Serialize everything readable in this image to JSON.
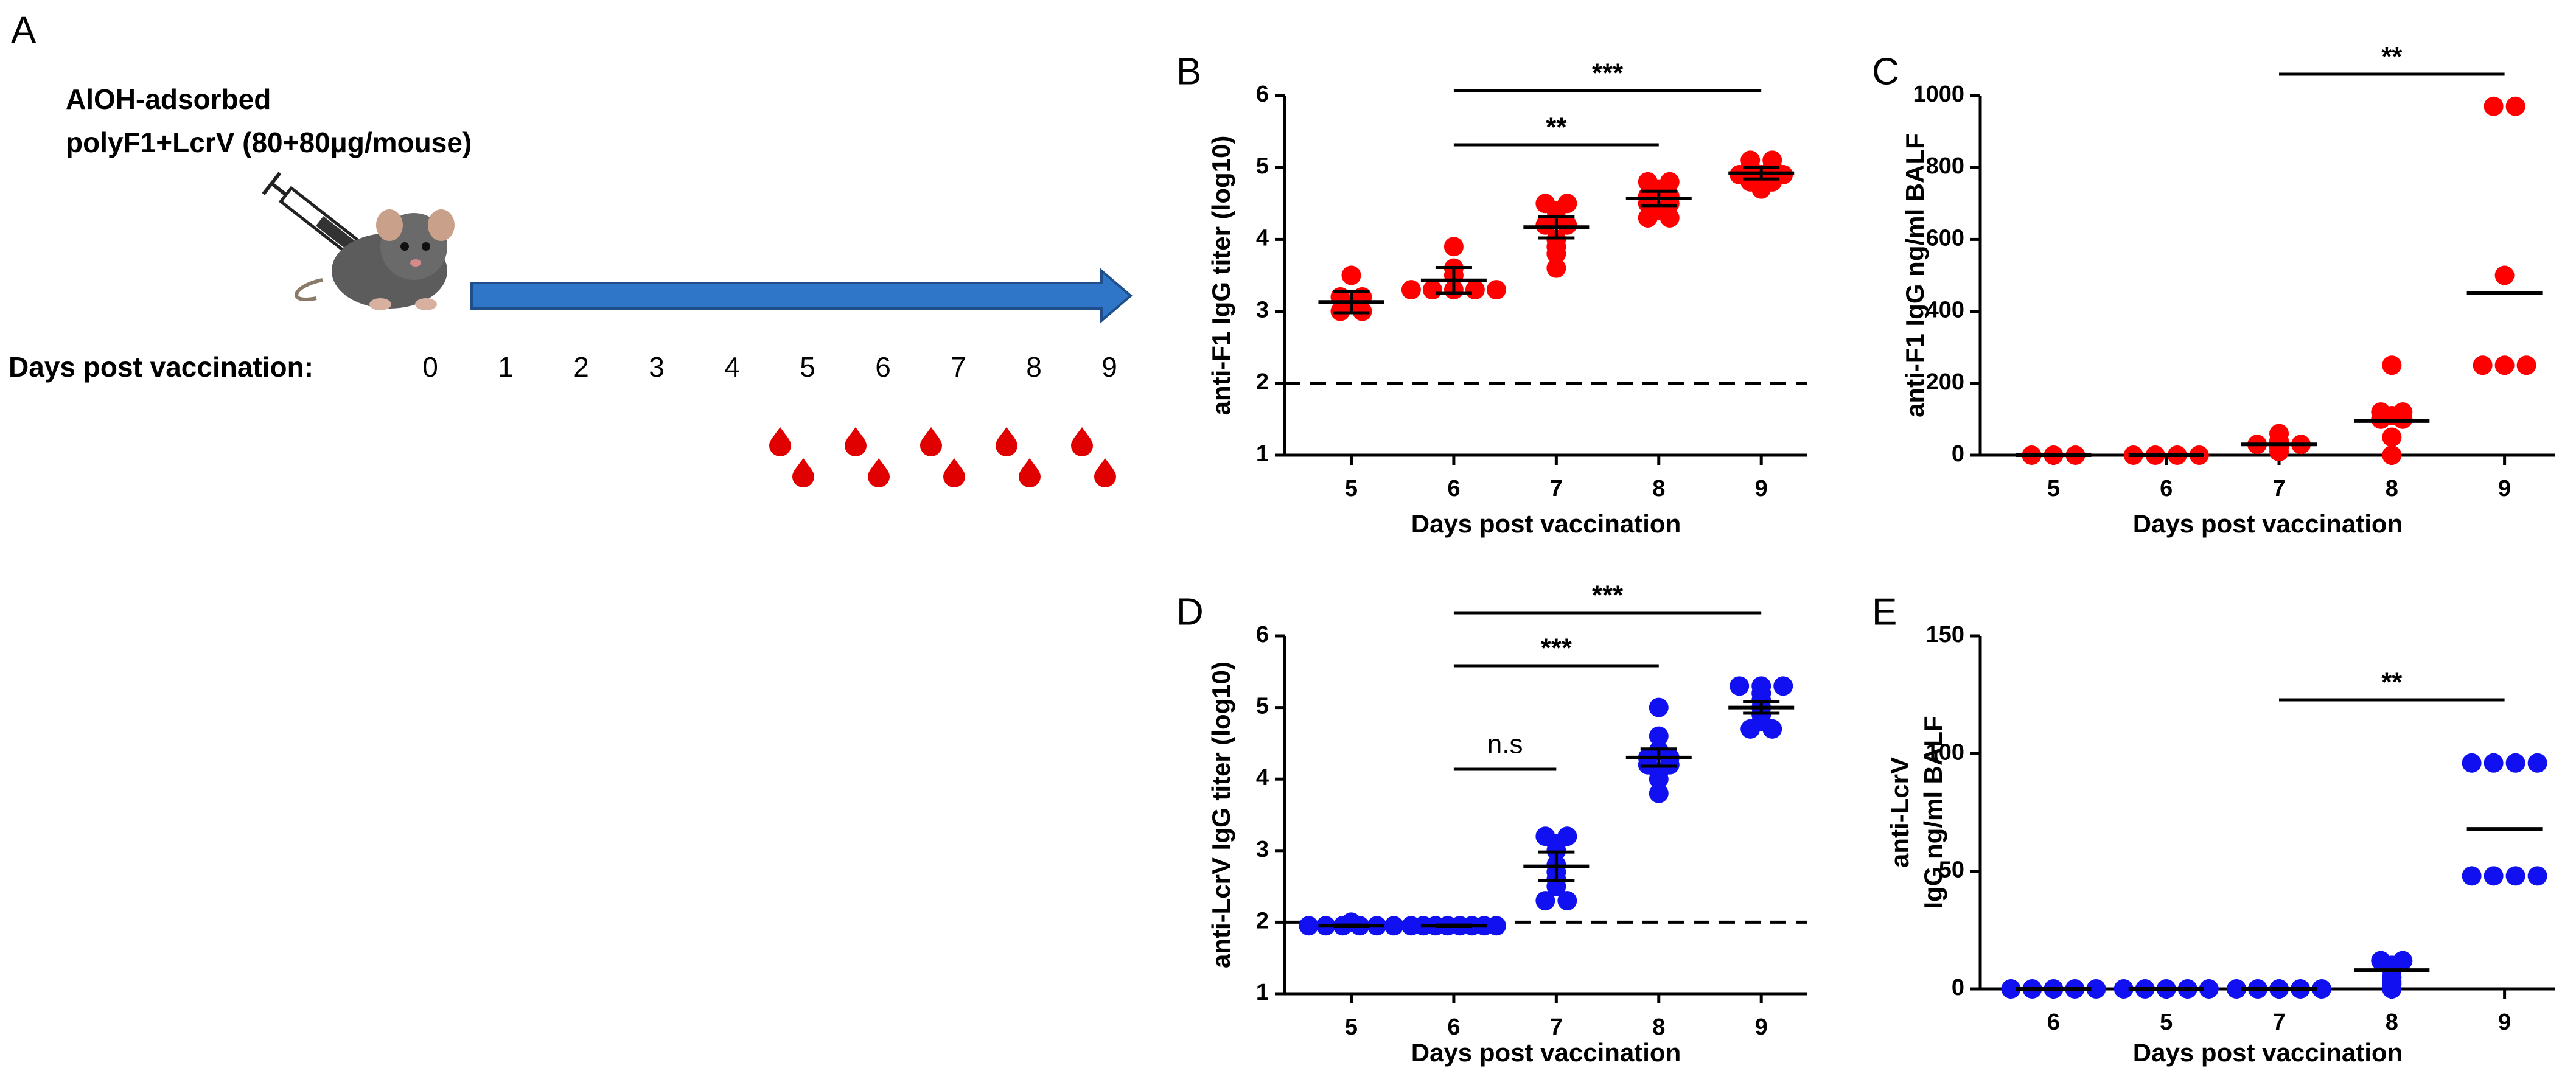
{
  "panel_a": {
    "letter": "A",
    "title_lines": [
      "AlOH-adsorbed",
      "polyF1+LcrV (80+80μg/mouse)"
    ],
    "days_label": "Days post vaccination:",
    "days": [
      0,
      1,
      2,
      3,
      4,
      5,
      6,
      7,
      8,
      9
    ]
  },
  "chart_data": [
    {
      "type": "dotplot",
      "panel": "B",
      "color": "#ff0000",
      "x_label": "Days post vaccination",
      "y_label": "anti-F1 IgG titer (log10)",
      "categories": [
        "5",
        "6",
        "7",
        "8",
        "9"
      ],
      "values": [
        [
          3.5,
          3.2,
          3.1,
          3.0,
          3.0,
          3.2
        ],
        [
          3.9,
          3.6,
          3.5,
          3.3,
          3.3,
          3.3,
          3.3,
          3.3
        ],
        [
          4.5,
          4.5,
          4.4,
          4.3,
          4.2,
          4.0,
          3.9,
          3.8,
          3.6,
          4.2
        ],
        [
          4.8,
          4.8,
          4.7,
          4.6,
          4.6,
          4.5,
          4.4,
          4.3,
          4.3,
          4.5
        ],
        [
          5.1,
          5.1,
          5.0,
          5.0,
          4.9,
          4.9,
          4.9,
          4.8,
          4.8,
          4.7
        ]
      ],
      "means": [
        3.13,
        3.43,
        4.17,
        4.57,
        4.92
      ],
      "errors": [
        0.15,
        0.18,
        0.15,
        0.1,
        0.08
      ],
      "ylim": [
        1,
        6
      ],
      "yticks": [
        1,
        2,
        3,
        4,
        5,
        6
      ],
      "reference_line": 2,
      "brackets": [
        {
          "from": "6",
          "to": "8",
          "label": "**"
        },
        {
          "from": "6",
          "to": "9",
          "label": "***"
        }
      ]
    },
    {
      "type": "dotplot",
      "panel": "C",
      "color": "#ff0000",
      "x_label": "Days post vaccination",
      "y_label": "anti-F1 IgG ng/ml BALF",
      "categories": [
        "5",
        "6",
        "7",
        "8",
        "9"
      ],
      "values": [
        [
          0,
          0,
          0
        ],
        [
          0,
          0,
          0,
          0
        ],
        [
          10,
          20,
          25,
          30,
          30,
          30,
          35,
          40,
          60
        ],
        [
          250,
          120,
          120,
          110,
          100,
          100,
          50,
          0
        ],
        [
          970,
          970,
          500,
          250,
          250,
          250
        ]
      ],
      "means": [
        0,
        0,
        30,
        95,
        450
      ],
      "ylim": [
        0,
        1000
      ],
      "yticks": [
        0,
        200,
        400,
        600,
        800,
        1000
      ],
      "brackets": [
        {
          "from": "7",
          "to": "9",
          "label": "**"
        }
      ]
    },
    {
      "type": "dotplot",
      "panel": "D",
      "color": "#1010f0",
      "x_label": "Days post vaccination",
      "y_label": "anti-LcrV IgG titer (log10)",
      "categories": [
        "5",
        "6",
        "7",
        "8",
        "9"
      ],
      "values": [
        [
          2.0,
          1.95,
          1.95,
          1.95,
          1.95,
          1.95,
          1.95
        ],
        [
          1.95,
          1.95,
          1.95,
          1.95,
          1.95,
          1.95,
          1.95,
          1.95
        ],
        [
          3.2,
          3.2,
          3.1,
          3.0,
          2.8,
          2.7,
          2.6,
          2.5,
          2.3,
          2.3
        ],
        [
          5.0,
          4.6,
          4.4,
          4.3,
          4.3,
          4.2,
          4.2,
          4.1,
          4.0,
          3.8
        ],
        [
          5.3,
          5.3,
          5.3,
          5.2,
          5.1,
          5.0,
          4.9,
          4.8,
          4.7,
          4.7
        ]
      ],
      "means": [
        1.95,
        1.95,
        2.78,
        4.3,
        5.0
      ],
      "errors": [
        0.01,
        0.01,
        0.2,
        0.12,
        0.08
      ],
      "ylim": [
        1,
        6
      ],
      "yticks": [
        1,
        2,
        3,
        4,
        5,
        6
      ],
      "reference_line": 2,
      "brackets": [
        {
          "from": "6",
          "to": "7",
          "label": "n.s"
        },
        {
          "from": "6",
          "to": "8",
          "label": "***"
        },
        {
          "from": "6",
          "to": "9",
          "label": "***"
        }
      ]
    },
    {
      "type": "dotplot",
      "panel": "E",
      "color": "#1010f0",
      "x_label": "Days post vaccination",
      "y_label": [
        "anti-LcrV",
        "IgG ng/ml BALF"
      ],
      "categories": [
        "6",
        "5",
        "7",
        "8",
        "9"
      ],
      "values": [
        [
          0,
          0,
          0,
          0,
          0
        ],
        [
          0,
          0,
          0,
          0,
          0
        ],
        [
          0,
          0,
          0,
          0,
          0
        ],
        [
          12,
          12,
          10,
          8,
          5,
          3,
          2,
          0
        ],
        [
          96,
          96,
          96,
          96,
          48,
          48,
          48,
          48
        ]
      ],
      "means": [
        0,
        0,
        0,
        8,
        68
      ],
      "ylim": [
        0,
        150
      ],
      "yticks": [
        0,
        50,
        100,
        150
      ],
      "brackets": [
        {
          "from": "7",
          "to": "9",
          "label": "**"
        }
      ]
    }
  ]
}
